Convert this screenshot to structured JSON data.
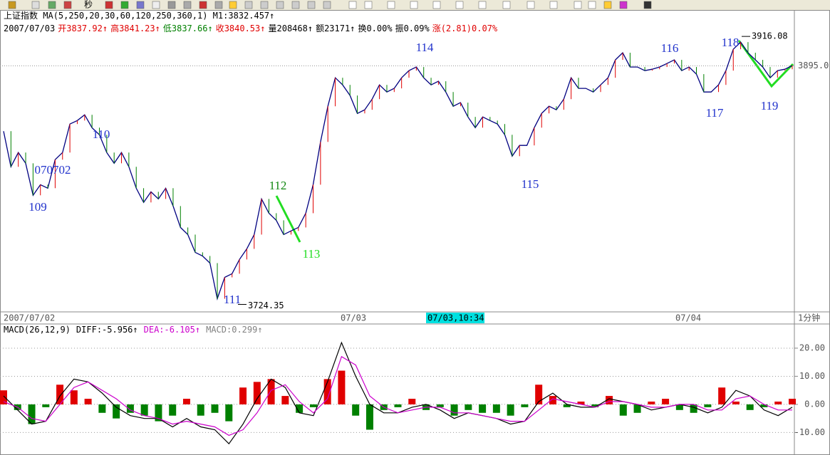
{
  "toolbar": {
    "label": "秒"
  },
  "chart_data": [
    {
      "type": "line",
      "title": "上证指数",
      "indicator": "MA(5,250,20,30,60,120,250,360,1)",
      "readout": "M1:3832.457↑",
      "info": [
        {
          "text": "2007/07/03",
          "color": "#000000"
        },
        {
          "text": "开3837.92↑",
          "color": "#e00000"
        },
        {
          "text": "高3841.23↑",
          "color": "#e00000"
        },
        {
          "text": "低3837.66↑",
          "color": "#008000"
        },
        {
          "text": "收3840.53↑",
          "color": "#e00000"
        },
        {
          "text": "量208468↑",
          "color": "#000000"
        },
        {
          "text": "额23171↑",
          "color": "#000000"
        },
        {
          "text": "换0.00%",
          "color": "#000000"
        },
        {
          "text": "振0.09%",
          "color": "#000000"
        },
        {
          "text": "涨(2.81)0.07%",
          "color": "#e00000"
        }
      ],
      "color": "#000080",
      "values": [
        3848.3,
        3822.8,
        3833.0,
        3825.3,
        3802.4,
        3810.0,
        3807.5,
        3827.9,
        3833.0,
        3853.4,
        3855.9,
        3860.0,
        3850.8,
        3845.7,
        3833.0,
        3825.3,
        3833.0,
        3822.8,
        3807.5,
        3797.3,
        3804.9,
        3799.8,
        3807.5,
        3794.7,
        3779.4,
        3774.3,
        3761.6,
        3759.0,
        3753.9,
        3728.4,
        3743.7,
        3746.3,
        3756.5,
        3764.1,
        3774.3,
        3799.8,
        3789.6,
        3784.5,
        3774.3,
        3776.9,
        3779.4,
        3789.6,
        3810.0,
        3840.6,
        3866.1,
        3886.5,
        3881.4,
        3873.8,
        3861.0,
        3863.6,
        3871.2,
        3881.4,
        3876.3,
        3878.9,
        3886.5,
        3891.6,
        3894.2,
        3886.5,
        3881.4,
        3884.0,
        3876.3,
        3866.1,
        3868.7,
        3858.5,
        3850.8,
        3858.5,
        3855.9,
        3853.4,
        3845.7,
        3830.4,
        3838.1,
        3838.1,
        3850.8,
        3861.0,
        3866.1,
        3863.6,
        3871.2,
        3886.5,
        3878.9,
        3878.9,
        3876.3,
        3881.4,
        3886.5,
        3899.3,
        3904.4,
        3894.2,
        3894.2,
        3891.6,
        3892.6,
        3894.2,
        3896.7,
        3899.3,
        3891.6,
        3894.2,
        3889.1,
        3876.3,
        3876.3,
        3881.4,
        3891.6,
        3906.9,
        3912.0,
        3904.4,
        3899.3,
        3894.2,
        3886.5,
        3891.6,
        3892.6,
        3895.2
      ],
      "ylim": [
        3719,
        3935
      ],
      "yticks": [
        {
          "value": 3895,
          "label": "3895.0"
        }
      ],
      "extremes": [
        {
          "value": 3724.35,
          "label": "3724.35"
        },
        {
          "value": 3916.08,
          "label": "3916.08"
        }
      ],
      "annotations": [
        {
          "text": "109",
          "color": "#2233cc"
        },
        {
          "text": "070702",
          "color": "#2233cc"
        },
        {
          "text": "110",
          "color": "#2233cc"
        },
        {
          "text": "111",
          "color": "#2233cc"
        },
        {
          "text": "112",
          "color": "#118811"
        },
        {
          "text": "113",
          "color": "#22dd22"
        },
        {
          "text": "114",
          "color": "#2233cc"
        },
        {
          "text": "115",
          "color": "#2233cc"
        },
        {
          "text": "116",
          "color": "#2233cc"
        },
        {
          "text": "117",
          "color": "#2233cc"
        },
        {
          "text": "118",
          "color": "#2233cc"
        },
        {
          "text": "119",
          "color": "#2233cc"
        }
      ],
      "x_labels": [
        "2007/07/02",
        "07/03",
        "07/03,10:34",
        "07/04",
        "1分钟"
      ]
    },
    {
      "type": "macd",
      "title": "MACD(26,12,9)",
      "series": [
        {
          "label": "DIFF:-5.956↑",
          "color": "#000000",
          "values": [
            3,
            -2,
            -7,
            -6,
            3,
            9,
            8,
            4,
            -1,
            -4,
            -5,
            -5,
            -8,
            -5,
            -8,
            -9,
            -14,
            -7,
            2,
            9,
            6,
            -3,
            -4,
            8,
            22,
            10,
            0,
            -3,
            -3,
            -1,
            0,
            -2,
            -5,
            -3,
            -4,
            -5,
            -7,
            -6,
            1,
            4,
            0,
            -1,
            -1,
            2,
            1,
            0,
            -2,
            -1,
            0,
            -1,
            -3,
            -1,
            5,
            3,
            -2,
            -4,
            -1
          ]
        },
        {
          "label": "DEA:-6.105↑",
          "color": "#cc00cc",
          "values": [
            1,
            -1,
            -5,
            -6,
            0,
            6,
            8,
            5,
            2,
            -2,
            -4,
            -5,
            -7,
            -6,
            -7,
            -8,
            -11,
            -9,
            -3,
            5,
            7,
            1,
            -3,
            2,
            17,
            14,
            3,
            -1,
            -3,
            -2,
            -1,
            -1,
            -3,
            -3,
            -4,
            -5,
            -6,
            -6,
            -2,
            2,
            1,
            0,
            -1,
            1,
            1,
            0,
            -1,
            -1,
            0,
            0,
            -2,
            -2,
            2,
            3,
            0,
            -2,
            -2
          ]
        }
      ],
      "histogram": {
        "label": "MACD:0.299↑",
        "color": "#808080",
        "up_color": "#e00000",
        "down_color": "#008000",
        "values": [
          5,
          -2,
          -7,
          -1,
          7,
          5,
          2,
          -3,
          -5,
          -3,
          -4,
          -6,
          -4,
          2,
          -4,
          -3,
          -6,
          6,
          8,
          9,
          3,
          -3,
          -1,
          9,
          12,
          -4,
          -9,
          -2,
          -1,
          2,
          -2,
          -1,
          -4,
          -2,
          -3,
          -3,
          -4,
          -1,
          7,
          3,
          -1,
          1,
          -1,
          3,
          -4,
          -3,
          1,
          2,
          -2,
          -3,
          -1,
          6,
          1,
          -2,
          -1,
          1,
          2
        ]
      },
      "ylim": [
        -18,
        28.6
      ],
      "yticks": [
        {
          "value": 20,
          "label": "20.00"
        },
        {
          "value": 10,
          "label": "10.00"
        },
        {
          "value": 0,
          "label": "0.00"
        },
        {
          "value": -10,
          "label": "-10.00"
        }
      ]
    }
  ]
}
